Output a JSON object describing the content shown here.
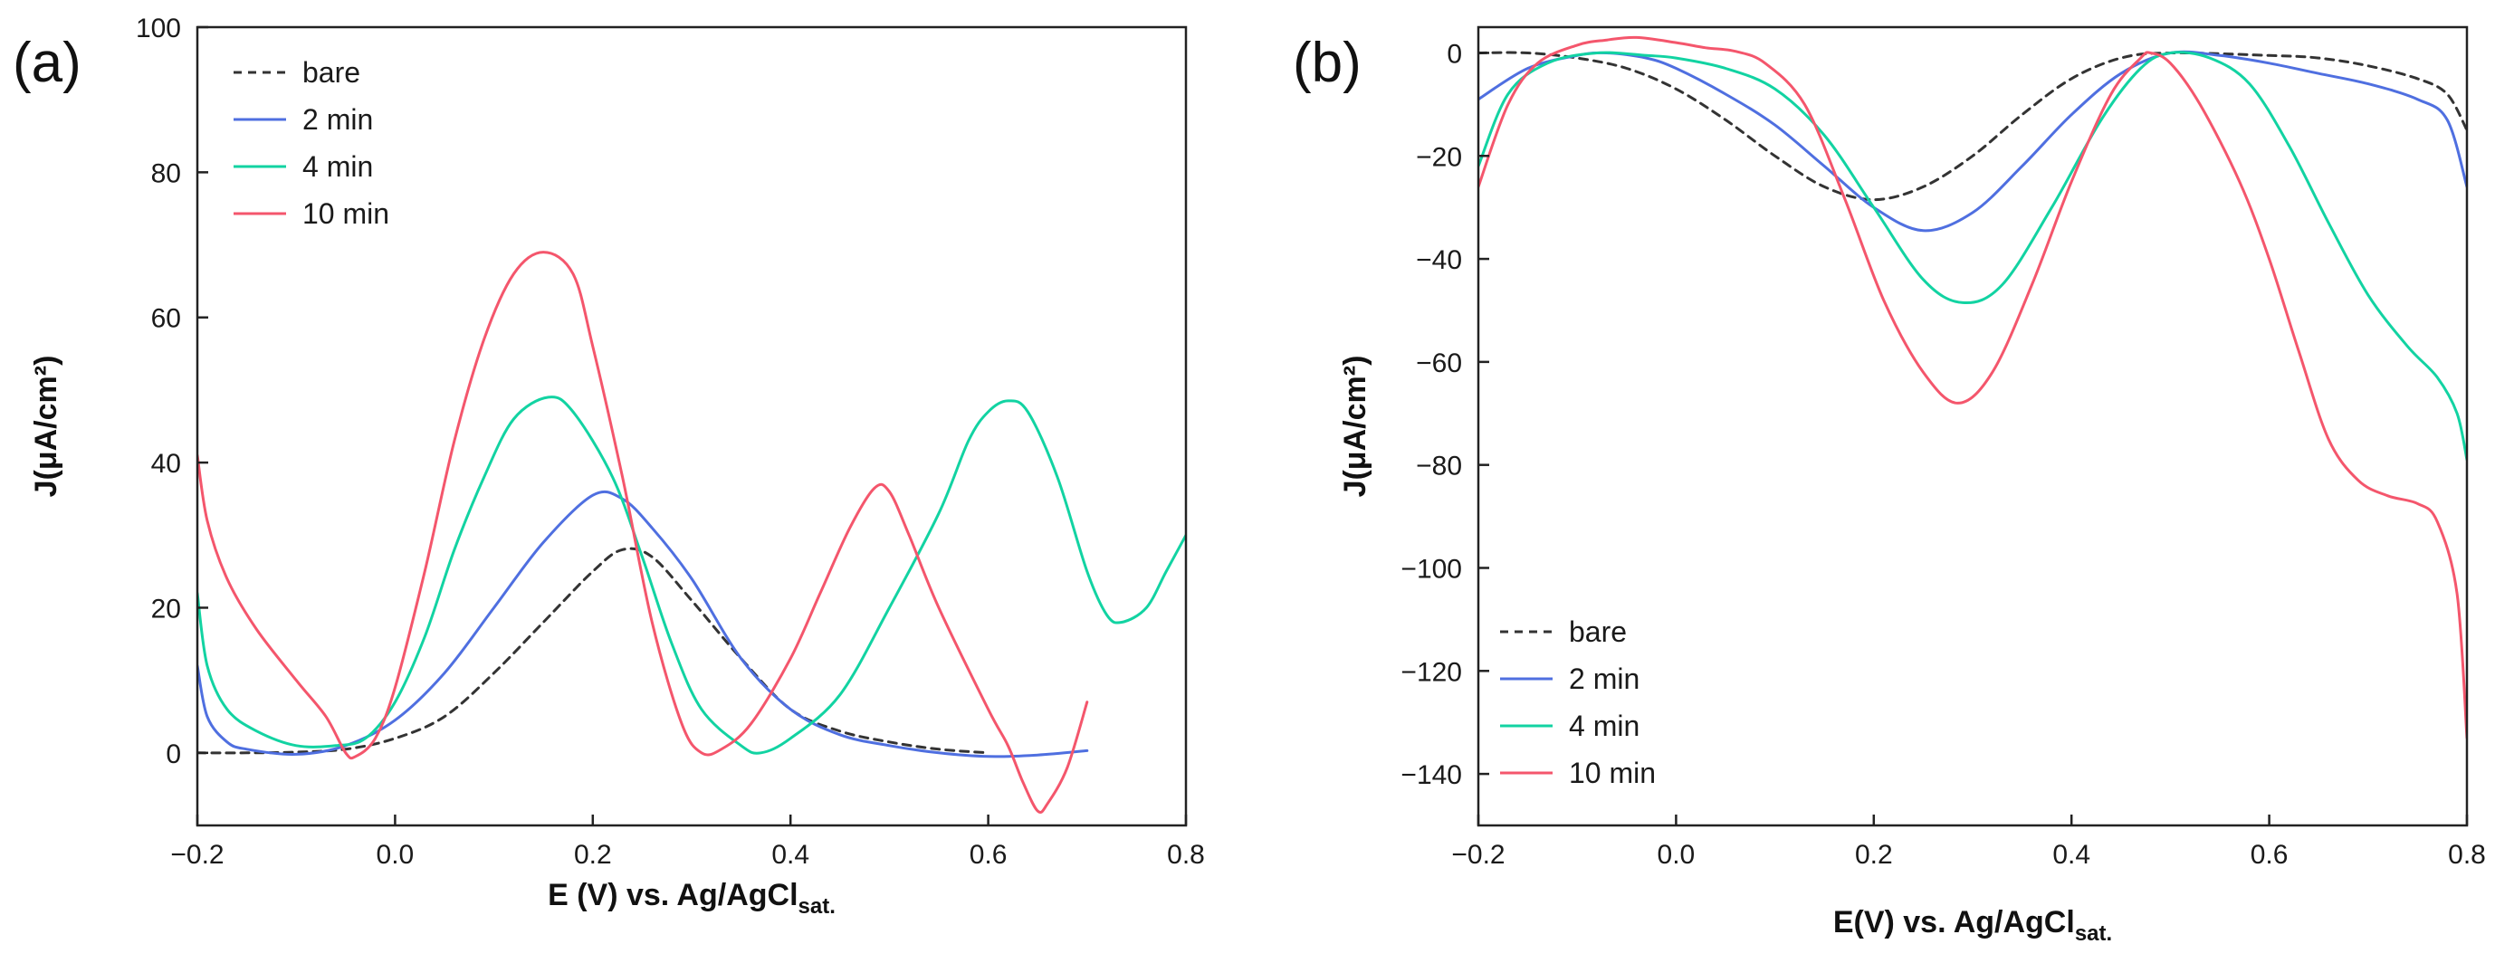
{
  "chart_data": [
    {
      "type": "line",
      "panel_label": "(a)",
      "xlabel": "E (V) vs. Ag/AgCl",
      "xlabel_sub": "sat.",
      "ylabel": "J(μA/cm²)",
      "xlim": [
        -0.2,
        0.8
      ],
      "ylim": [
        -10,
        100
      ],
      "xticks": [
        -0.2,
        0.0,
        0.2,
        0.4,
        0.6,
        0.8
      ],
      "xtick_labels": [
        "−0.2",
        "0.0",
        "0.2",
        "0.4",
        "0.6",
        "0.8"
      ],
      "yticks": [
        0,
        20,
        40,
        60,
        80,
        100
      ],
      "ytick_labels": [
        "0",
        "20",
        "40",
        "60",
        "80",
        "100"
      ],
      "legend_position": "top-left",
      "series": [
        {
          "name": "bare",
          "color": "#333333",
          "dashed": true,
          "points": [
            [
              -0.2,
              0
            ],
            [
              -0.15,
              0
            ],
            [
              -0.1,
              0.1
            ],
            [
              -0.05,
              0.5
            ],
            [
              0,
              2
            ],
            [
              0.05,
              5
            ],
            [
              0.1,
              11
            ],
            [
              0.15,
              18
            ],
            [
              0.2,
              25
            ],
            [
              0.23,
              28
            ],
            [
              0.26,
              27
            ],
            [
              0.3,
              21
            ],
            [
              0.35,
              13
            ],
            [
              0.4,
              6
            ],
            [
              0.45,
              3
            ],
            [
              0.5,
              1.5
            ],
            [
              0.55,
              0.5
            ],
            [
              0.6,
              0
            ]
          ]
        },
        {
          "name": "2 min",
          "color": "#4f6fe0",
          "dashed": false,
          "points": [
            [
              -0.2,
              12
            ],
            [
              -0.19,
              5
            ],
            [
              -0.17,
              1.5
            ],
            [
              -0.15,
              0.5
            ],
            [
              -0.1,
              -0.2
            ],
            [
              -0.05,
              1
            ],
            [
              0,
              4.5
            ],
            [
              0.05,
              11
            ],
            [
              0.1,
              20
            ],
            [
              0.15,
              29
            ],
            [
              0.2,
              35.5
            ],
            [
              0.23,
              35
            ],
            [
              0.26,
              31
            ],
            [
              0.3,
              24
            ],
            [
              0.35,
              13
            ],
            [
              0.4,
              6
            ],
            [
              0.45,
              2.5
            ],
            [
              0.5,
              1
            ],
            [
              0.55,
              0
            ],
            [
              0.6,
              -0.5
            ],
            [
              0.65,
              -0.3
            ],
            [
              0.7,
              0.3
            ]
          ]
        },
        {
          "name": "4 min",
          "color": "#12d3a2",
          "dashed": false,
          "points": [
            [
              -0.2,
              22
            ],
            [
              -0.19,
              12
            ],
            [
              -0.17,
              6
            ],
            [
              -0.14,
              3
            ],
            [
              -0.1,
              1
            ],
            [
              -0.06,
              1
            ],
            [
              -0.03,
              2
            ],
            [
              0,
              7
            ],
            [
              0.03,
              16
            ],
            [
              0.06,
              28
            ],
            [
              0.09,
              38
            ],
            [
              0.12,
              46
            ],
            [
              0.155,
              49
            ],
            [
              0.18,
              47
            ],
            [
              0.22,
              38
            ],
            [
              0.25,
              27
            ],
            [
              0.28,
              15
            ],
            [
              0.31,
              6
            ],
            [
              0.35,
              1
            ],
            [
              0.37,
              0
            ],
            [
              0.4,
              2
            ],
            [
              0.45,
              8
            ],
            [
              0.5,
              20
            ],
            [
              0.55,
              33
            ],
            [
              0.58,
              43
            ],
            [
              0.6,
              47
            ],
            [
              0.62,
              48.5
            ],
            [
              0.64,
              47
            ],
            [
              0.67,
              38
            ],
            [
              0.7,
              25
            ],
            [
              0.72,
              19
            ],
            [
              0.735,
              18
            ],
            [
              0.76,
              20
            ],
            [
              0.78,
              25
            ],
            [
              0.8,
              30
            ]
          ]
        },
        {
          "name": "10 min",
          "color": "#f4566c",
          "dashed": false,
          "points": [
            [
              -0.2,
              41
            ],
            [
              -0.19,
              32
            ],
            [
              -0.17,
              24
            ],
            [
              -0.14,
              17
            ],
            [
              -0.1,
              10
            ],
            [
              -0.07,
              5
            ],
            [
              -0.05,
              0
            ],
            [
              -0.04,
              -0.5
            ],
            [
              -0.02,
              2
            ],
            [
              0,
              9
            ],
            [
              0.03,
              25
            ],
            [
              0.06,
              43
            ],
            [
              0.09,
              57
            ],
            [
              0.12,
              66
            ],
            [
              0.15,
              69
            ],
            [
              0.18,
              66
            ],
            [
              0.2,
              56
            ],
            [
              0.23,
              38
            ],
            [
              0.26,
              18
            ],
            [
              0.29,
              4
            ],
            [
              0.31,
              0
            ],
            [
              0.33,
              0.5
            ],
            [
              0.36,
              4
            ],
            [
              0.4,
              13
            ],
            [
              0.43,
              22
            ],
            [
              0.46,
              31
            ],
            [
              0.485,
              36.5
            ],
            [
              0.5,
              36
            ],
            [
              0.52,
              30
            ],
            [
              0.55,
              20
            ],
            [
              0.6,
              6
            ],
            [
              0.62,
              1
            ],
            [
              0.635,
              -4
            ],
            [
              0.65,
              -8
            ],
            [
              0.66,
              -7
            ],
            [
              0.68,
              -2
            ],
            [
              0.7,
              7
            ]
          ]
        }
      ]
    },
    {
      "type": "line",
      "panel_label": "(b)",
      "xlabel": "E(V) vs. Ag/AgCl",
      "xlabel_sub": "sat.",
      "ylabel": "J(μA/cm²)",
      "xlim": [
        -0.2,
        0.8
      ],
      "ylim": [
        -150,
        5
      ],
      "xticks": [
        -0.2,
        0.0,
        0.2,
        0.4,
        0.6,
        0.8
      ],
      "xtick_labels": [
        "−0.2",
        "0.0",
        "0.2",
        "0.4",
        "0.6",
        "0.8"
      ],
      "yticks": [
        0,
        -20,
        -40,
        -60,
        -80,
        -100,
        -120,
        -140
      ],
      "ytick_labels": [
        "0",
        "−20",
        "−40",
        "−60",
        "−80",
        "−100",
        "−120",
        "−140"
      ],
      "legend_position": "bottom-left",
      "series": [
        {
          "name": "bare",
          "color": "#333333",
          "dashed": true,
          "points": [
            [
              -0.2,
              0
            ],
            [
              -0.15,
              0
            ],
            [
              -0.1,
              -1
            ],
            [
              -0.05,
              -3
            ],
            [
              0,
              -7
            ],
            [
              0.05,
              -13
            ],
            [
              0.1,
              -20
            ],
            [
              0.15,
              -26
            ],
            [
              0.2,
              -28.5
            ],
            [
              0.25,
              -26
            ],
            [
              0.3,
              -20
            ],
            [
              0.35,
              -12
            ],
            [
              0.4,
              -5
            ],
            [
              0.45,
              -1
            ],
            [
              0.5,
              0
            ],
            [
              0.6,
              -0.5
            ],
            [
              0.65,
              -1
            ],
            [
              0.7,
              -2.5
            ],
            [
              0.75,
              -5
            ],
            [
              0.78,
              -8
            ],
            [
              0.8,
              -15
            ]
          ]
        },
        {
          "name": "2 min",
          "color": "#4f6fe0",
          "dashed": false,
          "points": [
            [
              -0.2,
              -9
            ],
            [
              -0.15,
              -3
            ],
            [
              -0.1,
              -0.5
            ],
            [
              -0.07,
              0
            ],
            [
              -0.03,
              -1
            ],
            [
              0,
              -3
            ],
            [
              0.05,
              -8
            ],
            [
              0.1,
              -14
            ],
            [
              0.15,
              -22
            ],
            [
              0.2,
              -30
            ],
            [
              0.25,
              -34.5
            ],
            [
              0.3,
              -31
            ],
            [
              0.35,
              -22
            ],
            [
              0.4,
              -12
            ],
            [
              0.45,
              -4
            ],
            [
              0.5,
              0
            ],
            [
              0.55,
              -0.5
            ],
            [
              0.6,
              -2
            ],
            [
              0.65,
              -4
            ],
            [
              0.7,
              -6
            ],
            [
              0.75,
              -9
            ],
            [
              0.78,
              -13
            ],
            [
              0.8,
              -26
            ]
          ]
        },
        {
          "name": "4 min",
          "color": "#12d3a2",
          "dashed": false,
          "points": [
            [
              -0.2,
              -22
            ],
            [
              -0.17,
              -8
            ],
            [
              -0.13,
              -2
            ],
            [
              -0.08,
              0
            ],
            [
              -0.03,
              -0.5
            ],
            [
              0,
              -1
            ],
            [
              0.05,
              -3
            ],
            [
              0.1,
              -7
            ],
            [
              0.15,
              -16
            ],
            [
              0.2,
              -30
            ],
            [
              0.25,
              -44
            ],
            [
              0.29,
              -48.5
            ],
            [
              0.33,
              -45
            ],
            [
              0.38,
              -30
            ],
            [
              0.43,
              -13
            ],
            [
              0.47,
              -3
            ],
            [
              0.5,
              0
            ],
            [
              0.54,
              -1
            ],
            [
              0.58,
              -6
            ],
            [
              0.62,
              -18
            ],
            [
              0.66,
              -33
            ],
            [
              0.7,
              -47
            ],
            [
              0.74,
              -57
            ],
            [
              0.77,
              -63
            ],
            [
              0.79,
              -70
            ],
            [
              0.8,
              -79
            ]
          ]
        },
        {
          "name": "10 min",
          "color": "#f4566c",
          "dashed": false,
          "points": [
            [
              -0.2,
              -26
            ],
            [
              -0.17,
              -10
            ],
            [
              -0.14,
              -2
            ],
            [
              -0.1,
              1.5
            ],
            [
              -0.07,
              2.5
            ],
            [
              -0.04,
              3
            ],
            [
              0,
              2
            ],
            [
              0.03,
              1
            ],
            [
              0.06,
              0.3
            ],
            [
              0.09,
              -2
            ],
            [
              0.13,
              -10
            ],
            [
              0.17,
              -28
            ],
            [
              0.21,
              -48
            ],
            [
              0.25,
              -62
            ],
            [
              0.285,
              -68
            ],
            [
              0.32,
              -62
            ],
            [
              0.36,
              -45
            ],
            [
              0.4,
              -25
            ],
            [
              0.44,
              -8
            ],
            [
              0.47,
              -1
            ],
            [
              0.48,
              0
            ],
            [
              0.5,
              -2
            ],
            [
              0.53,
              -10
            ],
            [
              0.57,
              -25
            ],
            [
              0.6,
              -40
            ],
            [
              0.63,
              -58
            ],
            [
              0.66,
              -75
            ],
            [
              0.69,
              -83
            ],
            [
              0.72,
              -86
            ],
            [
              0.75,
              -87.5
            ],
            [
              0.77,
              -91
            ],
            [
              0.79,
              -105
            ],
            [
              0.8,
              -133
            ]
          ]
        }
      ]
    }
  ]
}
